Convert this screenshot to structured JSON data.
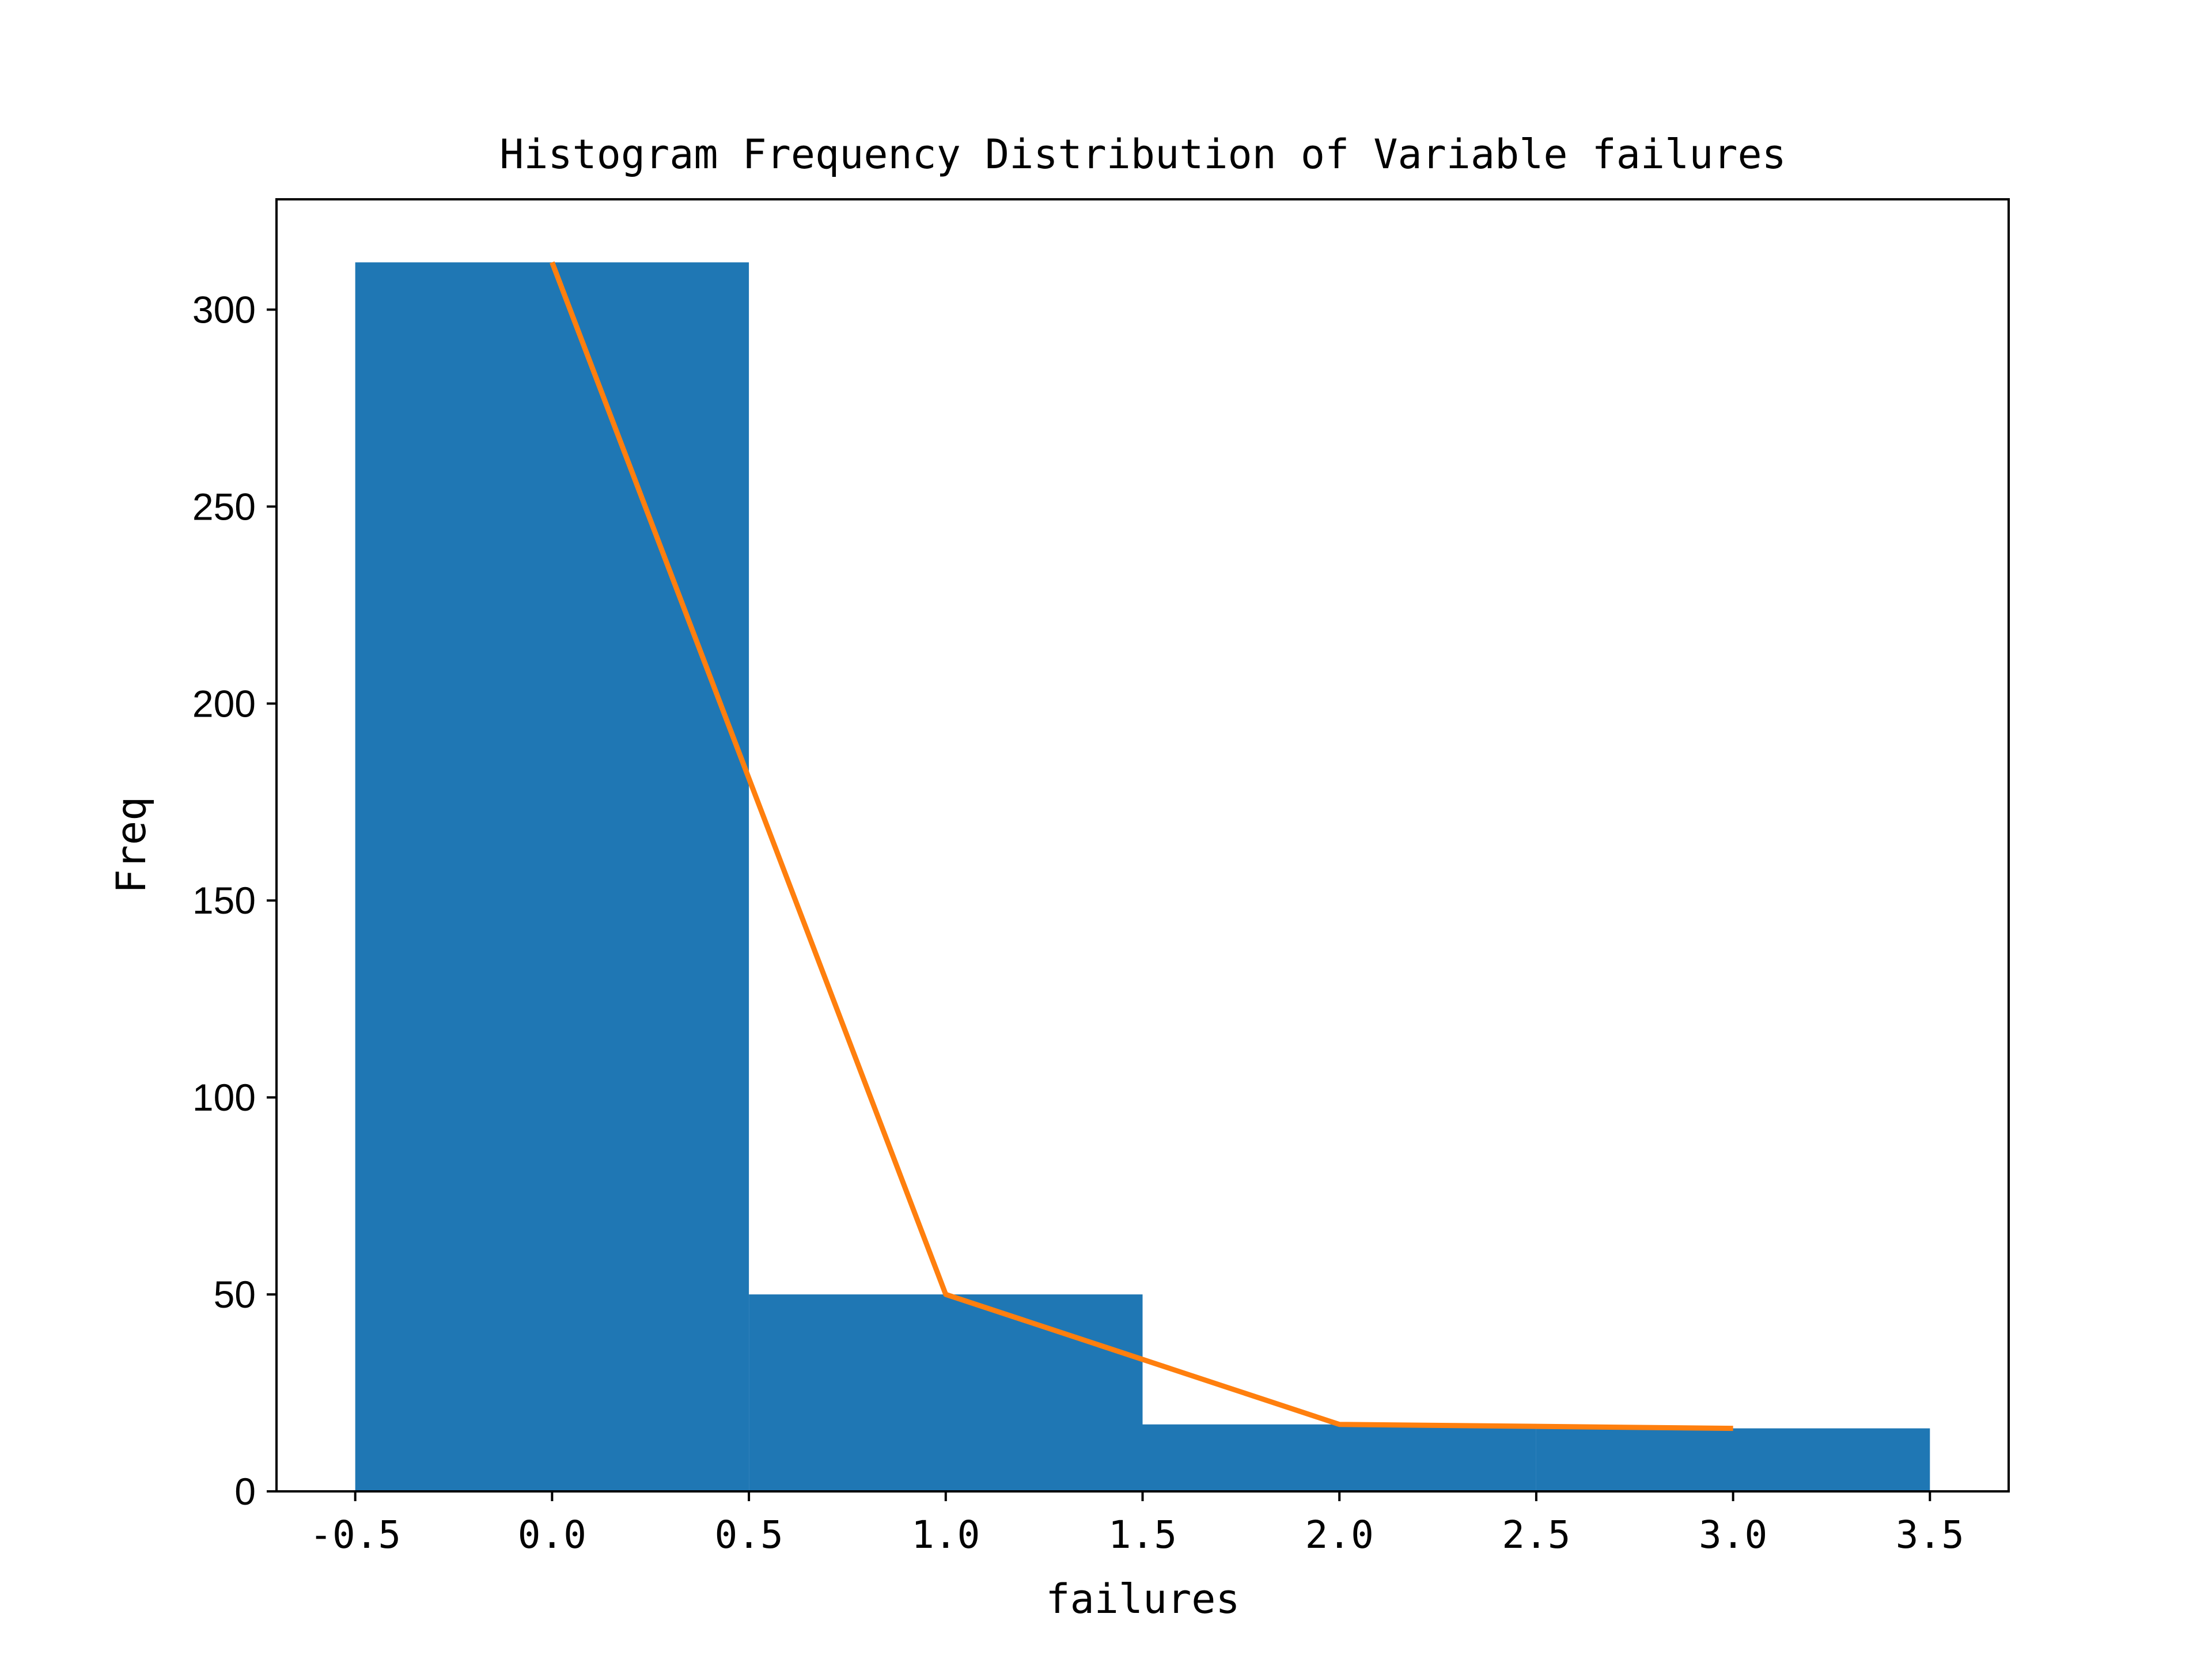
{
  "chart_data": {
    "type": "bar",
    "title": "Histogram Frequency Distribution of Variable failures",
    "xlabel": "failures",
    "ylabel": "Freq",
    "xlim": [
      -0.7,
      3.7
    ],
    "ylim": [
      0,
      328
    ],
    "xticks": [
      -0.5,
      0.0,
      0.5,
      1.0,
      1.5,
      2.0,
      2.5,
      3.0,
      3.5
    ],
    "xtick_labels": [
      "-0.5",
      "0.0",
      "0.5",
      "1.0",
      "1.5",
      "2.0",
      "2.5",
      "3.0",
      "3.5"
    ],
    "yticks": [
      0,
      50,
      100,
      150,
      200,
      250,
      300
    ],
    "ytick_labels": [
      "0",
      "50",
      "100",
      "150",
      "200",
      "250",
      "300"
    ],
    "bins": [
      {
        "x0": -0.5,
        "x1": 0.5,
        "value": 312
      },
      {
        "x0": 0.5,
        "x1": 1.5,
        "value": 50
      },
      {
        "x0": 1.5,
        "x1": 2.5,
        "value": 17
      },
      {
        "x0": 2.5,
        "x1": 3.5,
        "value": 16
      }
    ],
    "line": {
      "x": [
        0,
        1,
        2,
        3
      ],
      "y": [
        312,
        50,
        17,
        16
      ]
    },
    "grid": false,
    "colors": {
      "bar": "#1f77b4",
      "line": "#ff7f0e",
      "axis": "#000000"
    }
  }
}
